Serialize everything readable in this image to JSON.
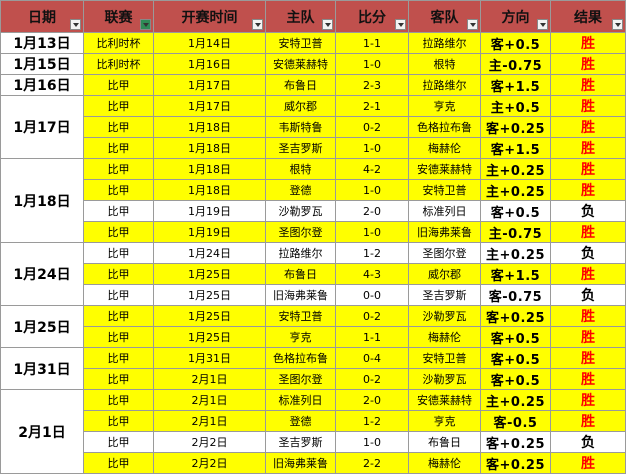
{
  "table": {
    "header": [
      "日期",
      "联赛",
      "开赛时间",
      "主队",
      "比分",
      "客队",
      "方向",
      "结果"
    ],
    "header_fill": "#c0504d",
    "win_color": "#ff0000",
    "lose_color": "#000000",
    "hit_fill": "#ffff00",
    "miss_fill": "#ffffff",
    "groups": [
      {
        "date": "1月13日",
        "rows": [
          [
            "比利时杯",
            "1月14日",
            "安特卫普",
            "1-1",
            "拉路维尔",
            "客+0.5",
            "胜"
          ]
        ]
      },
      {
        "date": "1月15日",
        "rows": [
          [
            "比利时杯",
            "1月16日",
            "安德莱赫特",
            "1-0",
            "根特",
            "主-0.75",
            "胜"
          ]
        ]
      },
      {
        "date": "1月16日",
        "rows": [
          [
            "比甲",
            "1月17日",
            "布鲁日",
            "2-3",
            "拉路维尔",
            "客+1.5",
            "胜"
          ]
        ]
      },
      {
        "date": "1月17日",
        "rows": [
          [
            "比甲",
            "1月17日",
            "威尔郡",
            "2-1",
            "亨克",
            "主+0.5",
            "胜"
          ],
          [
            "比甲",
            "1月18日",
            "韦斯特鲁",
            "0-2",
            "色格拉布鲁",
            "客+0.25",
            "胜"
          ],
          [
            "比甲",
            "1月18日",
            "圣吉罗斯",
            "1-0",
            "梅赫伦",
            "客+1.5",
            "胜"
          ]
        ]
      },
      {
        "date": "1月18日",
        "rows": [
          [
            "比甲",
            "1月18日",
            "根特",
            "4-2",
            "安德莱赫特",
            "主+0.25",
            "胜"
          ],
          [
            "比甲",
            "1月18日",
            "登德",
            "1-0",
            "安特卫普",
            "主+0.25",
            "胜"
          ],
          [
            "比甲",
            "1月19日",
            "沙勒罗瓦",
            "2-0",
            "标准列日",
            "客+0.5",
            "负"
          ],
          [
            "比甲",
            "1月19日",
            "圣图尔登",
            "1-0",
            "旧海弗莱鲁",
            "主-0.75",
            "胜"
          ]
        ]
      },
      {
        "date": "1月24日",
        "rows": [
          [
            "比甲",
            "1月24日",
            "拉路维尔",
            "1-2",
            "圣图尔登",
            "主+0.25",
            "负"
          ],
          [
            "比甲",
            "1月25日",
            "布鲁日",
            "4-3",
            "威尔郡",
            "客+1.5",
            "胜"
          ],
          [
            "比甲",
            "1月25日",
            "旧海弗莱鲁",
            "0-0",
            "圣吉罗斯",
            "客-0.75",
            "负"
          ]
        ]
      },
      {
        "date": "1月25日",
        "rows": [
          [
            "比甲",
            "1月25日",
            "安特卫普",
            "0-2",
            "沙勒罗瓦",
            "客+0.25",
            "胜"
          ],
          [
            "比甲",
            "1月25日",
            "亨克",
            "1-1",
            "梅赫伦",
            "客+0.5",
            "胜"
          ]
        ]
      },
      {
        "date": "1月31日",
        "rows": [
          [
            "比甲",
            "1月31日",
            "色格拉布鲁",
            "0-4",
            "安特卫普",
            "客+0.5",
            "胜"
          ],
          [
            "比甲",
            "2月1日",
            "圣图尔登",
            "0-2",
            "沙勒罗瓦",
            "客+0.5",
            "胜"
          ]
        ]
      },
      {
        "date": "2月1日",
        "rows": [
          [
            "比甲",
            "2月1日",
            "标准列日",
            "2-0",
            "安德莱赫特",
            "主+0.25",
            "胜"
          ],
          [
            "比甲",
            "2月1日",
            "登德",
            "1-2",
            "亨克",
            "客-0.5",
            "胜"
          ],
          [
            "比甲",
            "2月2日",
            "圣吉罗斯",
            "1-0",
            "布鲁日",
            "客+0.25",
            "负"
          ],
          [
            "比甲",
            "2月2日",
            "旧海弗莱鲁",
            "2-2",
            "梅赫伦",
            "客+0.25",
            "胜"
          ]
        ]
      }
    ]
  }
}
